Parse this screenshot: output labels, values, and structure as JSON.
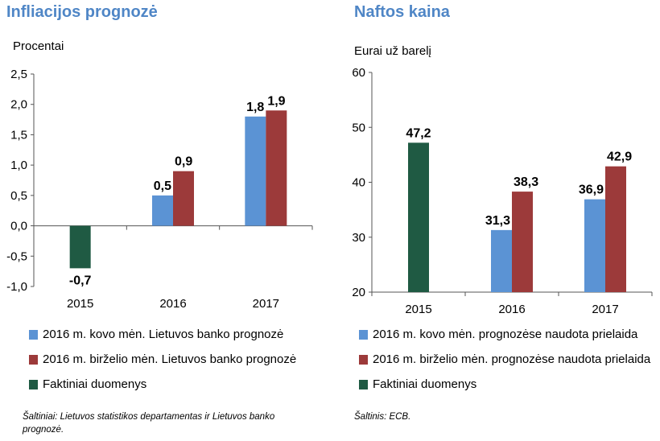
{
  "charts": {
    "left_title": "Infliacijos prognozė",
    "right_title": "Naftos kaina"
  },
  "colors": {
    "march": "#5b93d4",
    "june": "#9c3a3a",
    "actual": "#1f5a43",
    "title": "#4f86c6"
  },
  "chart_data": [
    {
      "type": "bar",
      "title": "Infliacijos prognozė",
      "ylabel": "Procentai",
      "categories": [
        "2015",
        "2016",
        "2017"
      ],
      "ylim": [
        -1.0,
        2.5
      ],
      "yticks": [
        "2,5",
        "2,0",
        "1,5",
        "1,0",
        "0,5",
        "0,0",
        "-0,5",
        "-1,0"
      ],
      "series": [
        {
          "name": "2016 m. kovo mėn. Lietuvos banko prognozė",
          "color": "#5b93d4",
          "values": [
            null,
            0.5,
            1.8
          ],
          "labels": [
            "",
            "0,5",
            "1,8"
          ]
        },
        {
          "name": "2016 m. birželio mėn. Lietuvos banko prognozė",
          "color": "#9c3a3a",
          "values": [
            null,
            0.9,
            1.9
          ],
          "labels": [
            "",
            "0,9",
            "1,9"
          ]
        },
        {
          "name": "Faktiniai duomenys",
          "color": "#1f5a43",
          "values": [
            -0.7,
            null,
            null
          ],
          "labels": [
            "-0,7",
            "",
            ""
          ]
        }
      ],
      "source": "Šaltiniai: Lietuvos statistikos departamentas ir Lietuvos banko prognozė."
    },
    {
      "type": "bar",
      "title": "Naftos kaina",
      "ylabel": "Eurai už barelį",
      "categories": [
        "2015",
        "2016",
        "2017"
      ],
      "ylim": [
        20,
        60
      ],
      "yticks": [
        "60",
        "50",
        "40",
        "30",
        "20"
      ],
      "series": [
        {
          "name": "2016 m. kovo mėn. prognozėse naudota prielaida",
          "color": "#5b93d4",
          "values": [
            null,
            31.3,
            36.9
          ],
          "labels": [
            "",
            "31,3",
            "36,9"
          ]
        },
        {
          "name": "2016 m. birželio mėn. prognozėse naudota prielaida",
          "color": "#9c3a3a",
          "values": [
            null,
            38.3,
            42.9
          ],
          "labels": [
            "",
            "38,3",
            "42,9"
          ]
        },
        {
          "name": "Faktiniai duomenys",
          "color": "#1f5a43",
          "values": [
            47.2,
            null,
            null
          ],
          "labels": [
            "47,2",
            "",
            ""
          ]
        }
      ],
      "source": "Šaltinis: ECB."
    }
  ]
}
